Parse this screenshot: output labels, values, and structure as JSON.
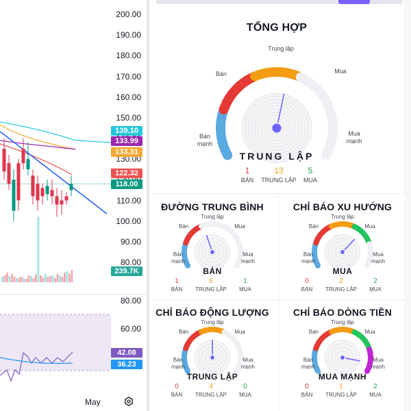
{
  "chart": {
    "price_axis": [
      "200.00",
      "190.00",
      "180.00",
      "170.00",
      "160.00",
      "150.00",
      "140.00",
      "130.00",
      "120.00",
      "110.00",
      "100.00",
      "90.00",
      "80.00"
    ],
    "price_tags": [
      {
        "value": "139.10",
        "color": "#26c6da"
      },
      {
        "value": "133.99",
        "color": "#9c27b0"
      },
      {
        "value": "133.31",
        "color": "#f6a935"
      },
      {
        "value": "122.32",
        "color": "#ef5350"
      },
      {
        "value": "118.00",
        "color": "#089981"
      },
      {
        "value": "239.7K",
        "color": "#26a69a"
      }
    ],
    "rsi_axis": [
      "80.00",
      "60.00"
    ],
    "rsi_tags": [
      {
        "value": "42.08",
        "color": "#7e57c2"
      },
      {
        "value": "36.23",
        "color": "#2196f3"
      }
    ],
    "time_label": "May",
    "settings_icon": "settings-icon"
  },
  "summary": {
    "title": "TỔNG HỢP",
    "status": "TRUNG LẬP",
    "labels": {
      "strong_sell": "Bán\nmạnh",
      "sell": "Bán",
      "neutral": "Trung lập",
      "buy": "Mua",
      "strong_buy": "Mua\nmạnh"
    },
    "counts": [
      {
        "num": "1",
        "label": "BÁN",
        "color": "#e53935"
      },
      {
        "num": "13",
        "label": "TRUNG LẬP",
        "color": "#f39c12"
      },
      {
        "num": "5",
        "label": "MUA",
        "color": "#22a046"
      }
    ],
    "needle_value": 0.55
  },
  "gauges": [
    {
      "title": "ĐƯỜNG TRUNG BÌNH",
      "status": "BÁN",
      "needle_value": 0.42,
      "counts": [
        {
          "num": "1",
          "label": "BÁN",
          "color": "#e53935"
        },
        {
          "num": "6",
          "label": "TRUNG LẬP",
          "color": "#f39c12"
        },
        {
          "num": "1",
          "label": "MUA",
          "color": "#22a046"
        }
      ],
      "active": [
        true,
        true,
        false,
        false,
        false
      ]
    },
    {
      "title": "CHỈ BÁO XU HƯỚNG",
      "status": "MUA",
      "needle_value": 0.68,
      "counts": [
        {
          "num": "0",
          "label": "BÁN",
          "color": "#e53935"
        },
        {
          "num": "2",
          "label": "TRUNG LẬP",
          "color": "#f39c12"
        },
        {
          "num": "2",
          "label": "MUA",
          "color": "#22a046"
        }
      ],
      "active": [
        true,
        true,
        true,
        true,
        false
      ]
    },
    {
      "title": "CHỈ BÁO ĐỘNG LƯỢNG",
      "status": "TRUNG LẬP",
      "needle_value": 0.5,
      "counts": [
        {
          "num": "0",
          "label": "BÁN",
          "color": "#e53935"
        },
        {
          "num": "4",
          "label": "TRUNG LẬP",
          "color": "#f39c12"
        },
        {
          "num": "0",
          "label": "MUA",
          "color": "#22a046"
        }
      ],
      "active": [
        true,
        true,
        true,
        false,
        false
      ]
    },
    {
      "title": "CHỈ BÁO DÒNG TIỀN",
      "status": "MUA MẠNH",
      "needle_value": 0.92,
      "counts": [
        {
          "num": "0",
          "label": "BÁN",
          "color": "#e53935"
        },
        {
          "num": "1",
          "label": "TRUNG LẬP",
          "color": "#f39c12"
        },
        {
          "num": "2",
          "label": "MUA",
          "color": "#22a046"
        }
      ],
      "active": [
        true,
        true,
        true,
        true,
        true
      ]
    }
  ],
  "gauge_labels": {
    "strong_sell": "Bán\nmạnh",
    "sell": "Bán",
    "neutral": "Trung lập",
    "buy": "Mua",
    "strong_buy": "Mua\nmạnh"
  },
  "colors": {
    "strong_sell": "#5aa9e0",
    "sell": "#e53935",
    "neutral": "#f39c12",
    "buy": "#22c55e",
    "strong_buy": "#c026d3",
    "inactive": "#eef0f3"
  }
}
